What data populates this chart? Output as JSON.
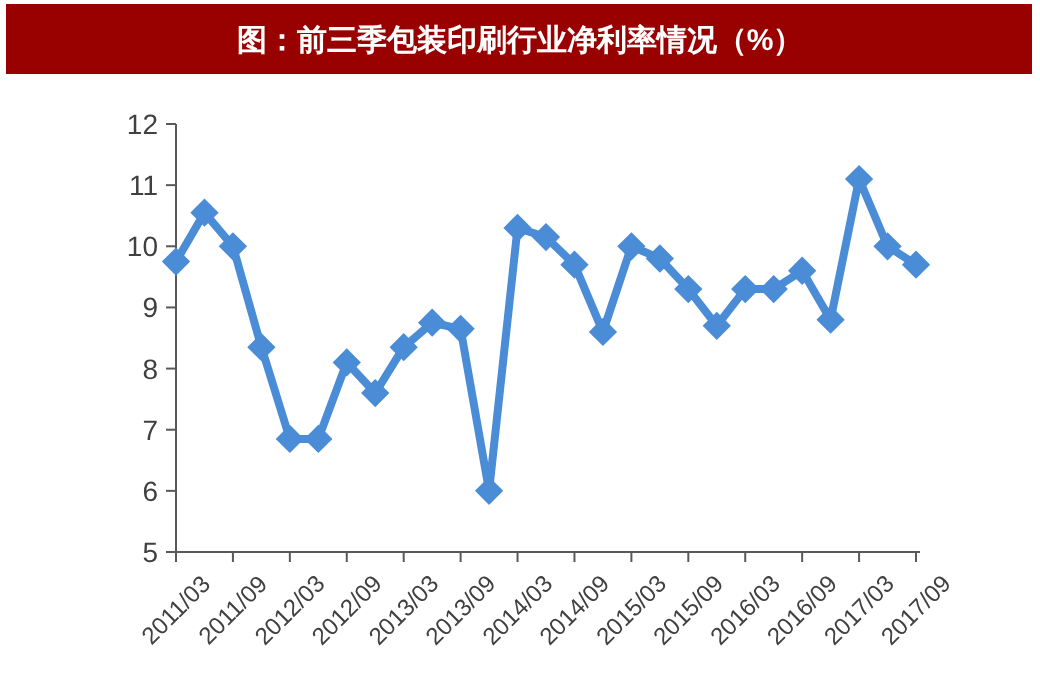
{
  "chart_data": {
    "type": "line",
    "title": "图：前三季包装印刷行业净利率情况（%）",
    "categories": [
      "2011/03",
      null,
      "2011/09",
      null,
      "2012/03",
      null,
      "2012/09",
      null,
      "2013/03",
      null,
      "2013/09",
      null,
      "2014/03",
      null,
      "2014/09",
      null,
      "2015/03",
      null,
      "2015/09",
      null,
      "2016/03",
      null,
      "2016/09",
      null,
      "2017/03",
      null,
      "2017/09"
    ],
    "series": [
      {
        "color": "#4a8cd6",
        "values": [
          9.75,
          10.55,
          10.0,
          8.35,
          6.85,
          6.85,
          8.1,
          7.6,
          8.35,
          8.75,
          8.65,
          6.0,
          10.3,
          10.15,
          9.7,
          8.6,
          10.0,
          9.8,
          9.3,
          8.7,
          9.3,
          9.3,
          9.6,
          8.8,
          11.1,
          10.0,
          9.7
        ]
      }
    ],
    "ylim": [
      5,
      12
    ],
    "yticks": [
      5,
      6,
      7,
      8,
      9,
      10,
      11,
      12
    ],
    "grid": false,
    "marker": "diamond",
    "line_style": "solid"
  }
}
